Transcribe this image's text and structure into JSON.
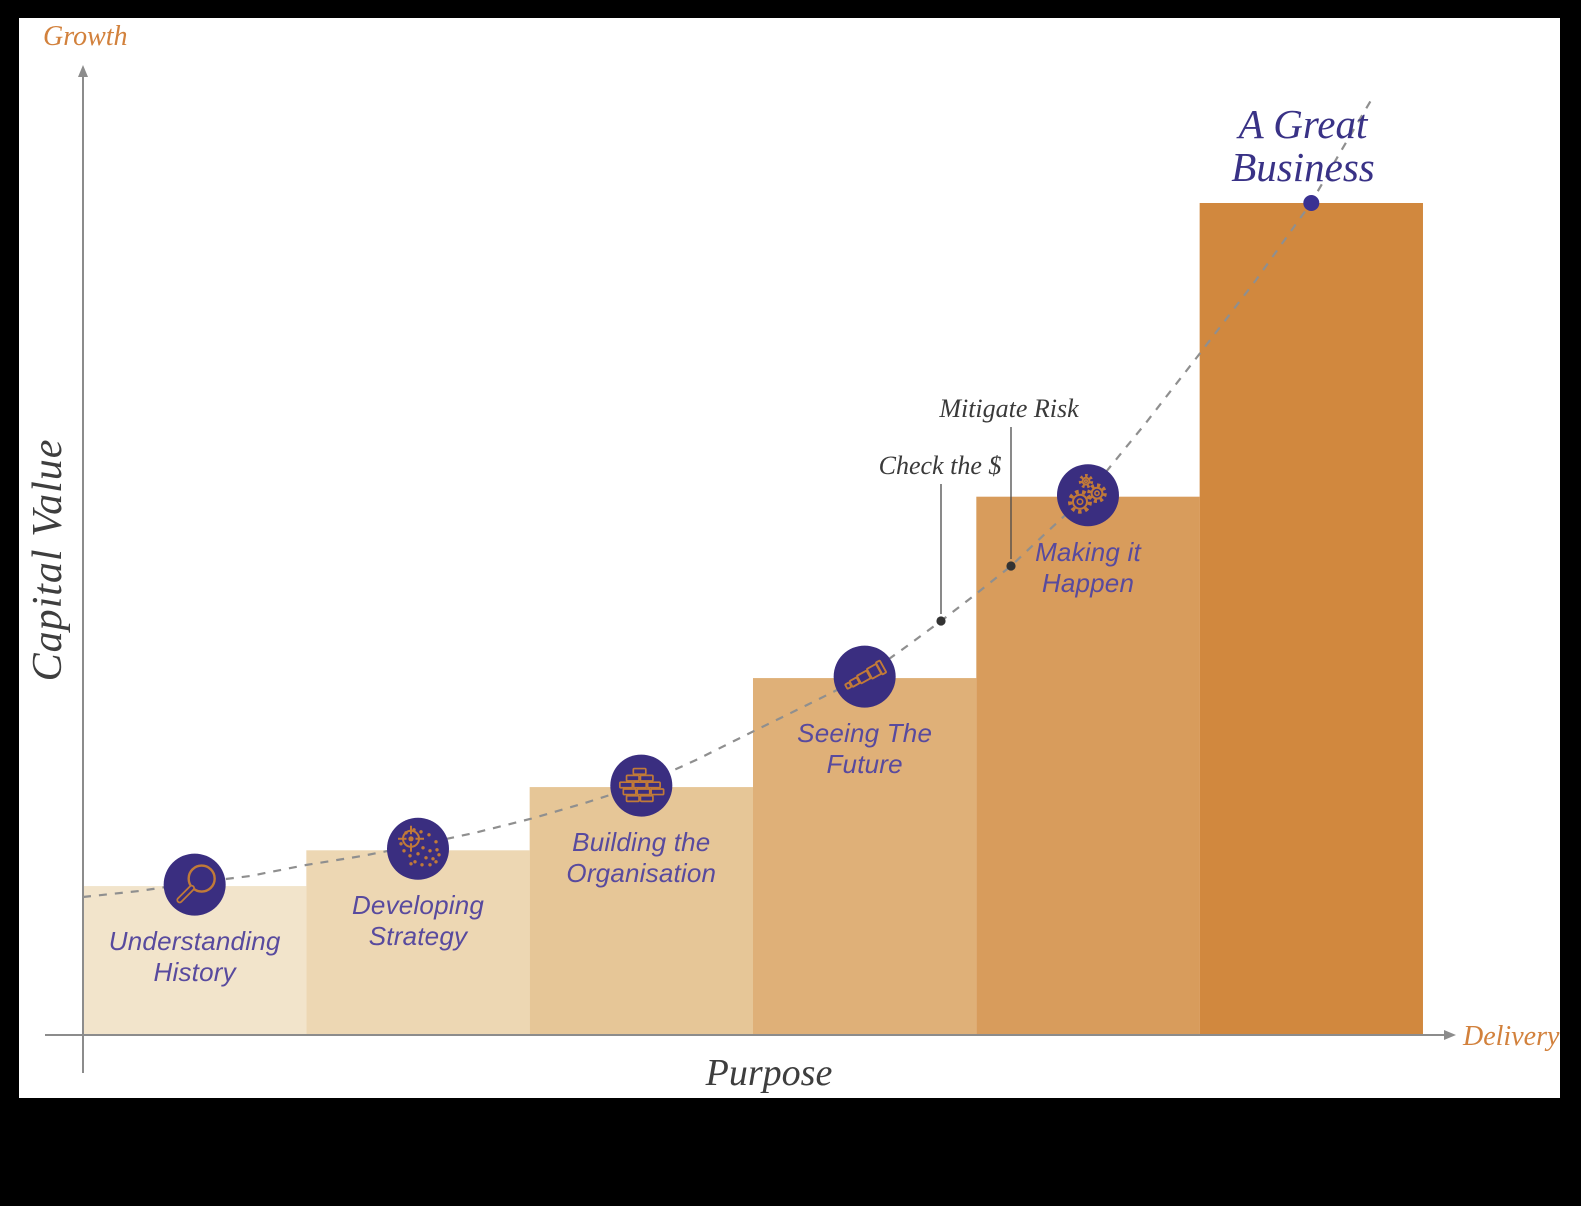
{
  "axis_labels": {
    "growth": "Growth",
    "capital_value": "Capital Value",
    "purpose": "Purpose",
    "delivery": "Delivery"
  },
  "title": {
    "text": "A Great\nBusiness"
  },
  "annotations": [
    {
      "label": "Check the $"
    },
    {
      "label": "Mitigate Risk"
    }
  ],
  "stages": [
    {
      "label": "Understanding\nHistory",
      "icon": "magnifier-icon",
      "bar_color": "#f2e4cb",
      "value": 0.179
    },
    {
      "label": "Developing\nStrategy",
      "icon": "target-icon",
      "bar_color": "#edd7b3",
      "value": 0.222
    },
    {
      "label": "Building the\nOrganisation",
      "icon": "bricks-icon",
      "bar_color": "#e6c697",
      "value": 0.298
    },
    {
      "label": "Seeing The\nFuture",
      "icon": "telescope-icon",
      "bar_color": "#dfb078",
      "value": 0.429
    },
    {
      "label": "Making it\nHappen",
      "icon": "gears-icon",
      "bar_color": "#d89c5c",
      "value": 0.647
    },
    {
      "label": "",
      "icon": "milestone-dot",
      "bar_color": "#d1883e",
      "value": 1.0
    }
  ],
  "colors": {
    "circle_fill": "#3a2e80",
    "icon_stroke": "#c17a38",
    "label_purple": "#584a9e",
    "title_indigo": "#393286",
    "axis_orange": "#d2813c",
    "serif_gray": "#3e3e3e",
    "annotation_dark": "#3a3a3a",
    "curve_gray": "#8f8f8f",
    "axis_gray": "#8c8c8c",
    "milestone_dot": "#3a3192",
    "frame_black": "#000000",
    "canvas_white": "#ffffff"
  },
  "chart_data": {
    "type": "bar",
    "categories": [
      "Understanding History",
      "Developing Strategy",
      "Building the Organisation",
      "Seeing The Future",
      "Making it Happen",
      "A Great Business"
    ],
    "values": [
      0.18,
      0.22,
      0.3,
      0.43,
      0.65,
      1.0
    ],
    "title": "A Great Business",
    "xlabel": "Purpose",
    "x_axis_end_label": "Delivery",
    "ylabel": "Capital Value",
    "y_axis_end_label": "Growth",
    "ylim": [
      0,
      1
    ],
    "grid": false,
    "legend": false,
    "annotations_on_curve": [
      "Check the $",
      "Mitigate Risk"
    ],
    "overlay_curve": "dashed exponential growth curve through stage milestone icons"
  }
}
